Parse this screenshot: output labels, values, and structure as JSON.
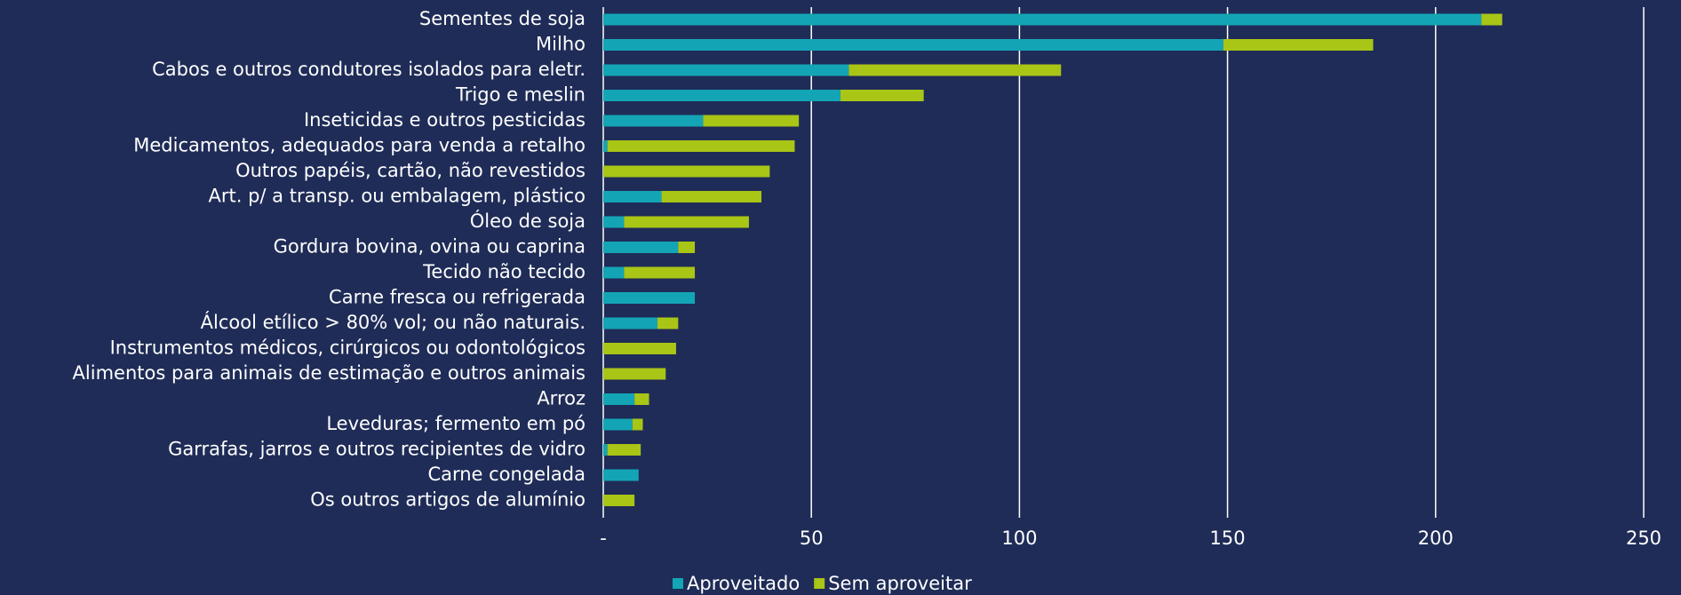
{
  "chart_data": {
    "type": "bar",
    "orientation": "horizontal",
    "stacked": true,
    "categories": [
      "Sementes de soja",
      "Milho",
      "Cabos e outros condutores isolados para eletr.",
      "Trigo e meslin",
      "Inseticidas e outros pesticidas",
      "Medicamentos, adequados para venda a retalho",
      "Outros papéis, cartão, não revestidos",
      "Art. p/ a transp. ou embalagem, plástico",
      "Óleo de soja",
      "Gordura bovina, ovina ou caprina",
      "Tecido não tecido",
      "Carne fresca ou refrigerada",
      "Álcool etílico > 80% vol; ou não naturais.",
      "Instrumentos médicos, cirúrgicos ou odontológicos",
      "Alimentos para animais de estimação e outros animais",
      "Arroz",
      "Leveduras; fermento em pó",
      "Garrafas, jarros e outros recipientes de vidro",
      "Carne congelada",
      "Os outros artigos de alumínio"
    ],
    "series": [
      {
        "name": "Aproveitado",
        "color": "#13a5b5",
        "values": [
          211,
          149,
          59,
          57,
          24,
          1,
          0,
          14,
          5,
          18,
          5,
          22,
          13,
          0,
          0,
          7.5,
          7,
          1,
          8.5,
          0
        ]
      },
      {
        "name": "Sem aproveitar",
        "color": "#a9c516",
        "values": [
          5,
          36,
          51,
          20,
          23,
          45,
          40,
          24,
          30,
          4,
          17,
          0,
          5,
          17.5,
          15,
          3.5,
          2.5,
          8,
          0,
          7.5
        ]
      }
    ],
    "xlim": [
      0,
      250
    ],
    "xticks": [
      {
        "value": 0,
        "label": "-"
      },
      50,
      100,
      150,
      200,
      250
    ],
    "grid": true,
    "legend": "bottom"
  }
}
